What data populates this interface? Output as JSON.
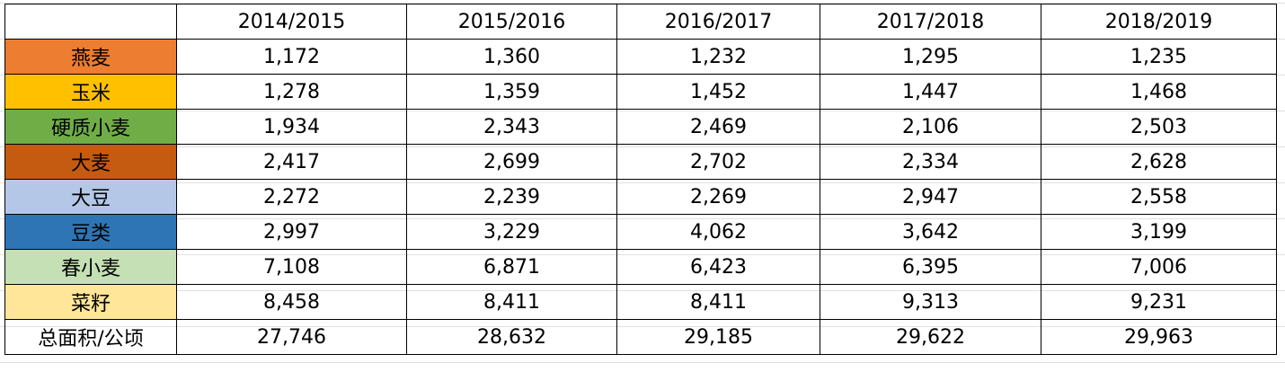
{
  "table": {
    "columns": [
      "2014/2015",
      "2015/2016",
      "2016/2017",
      "2017/2018",
      "2018/2019"
    ],
    "rows": [
      {
        "label": "燕麦",
        "color": "#ed7d31",
        "values": [
          "1,172",
          "1,360",
          "1,232",
          "1,295",
          "1,235"
        ]
      },
      {
        "label": "玉米",
        "color": "#ffc000",
        "values": [
          "1,278",
          "1,359",
          "1,452",
          "1,447",
          "1,468"
        ]
      },
      {
        "label": "硬质小麦",
        "color": "#70ad47",
        "values": [
          "1,934",
          "2,343",
          "2,469",
          "2,106",
          "2,503"
        ]
      },
      {
        "label": "大麦",
        "color": "#c55a11",
        "values": [
          "2,417",
          "2,699",
          "2,702",
          "2,334",
          "2,628"
        ]
      },
      {
        "label": "大豆",
        "color": "#b4c7e7",
        "values": [
          "2,272",
          "2,239",
          "2,269",
          "2,947",
          "2,558"
        ]
      },
      {
        "label": "豆类",
        "color": "#2e75b6",
        "values": [
          "2,997",
          "3,229",
          "4,062",
          "3,642",
          "3,199"
        ]
      },
      {
        "label": "春小麦",
        "color": "#c5e0b4",
        "values": [
          "7,108",
          "6,871",
          "6,423",
          "6,395",
          "7,006"
        ]
      },
      {
        "label": "菜籽",
        "color": "#ffe699",
        "values": [
          "8,458",
          "8,411",
          "8,411",
          "9,313",
          "9,231"
        ]
      },
      {
        "label": "总面积/公顷",
        "values": [
          "27,746",
          "28,632",
          "29,185",
          "29,622",
          "29,963"
        ]
      }
    ]
  }
}
